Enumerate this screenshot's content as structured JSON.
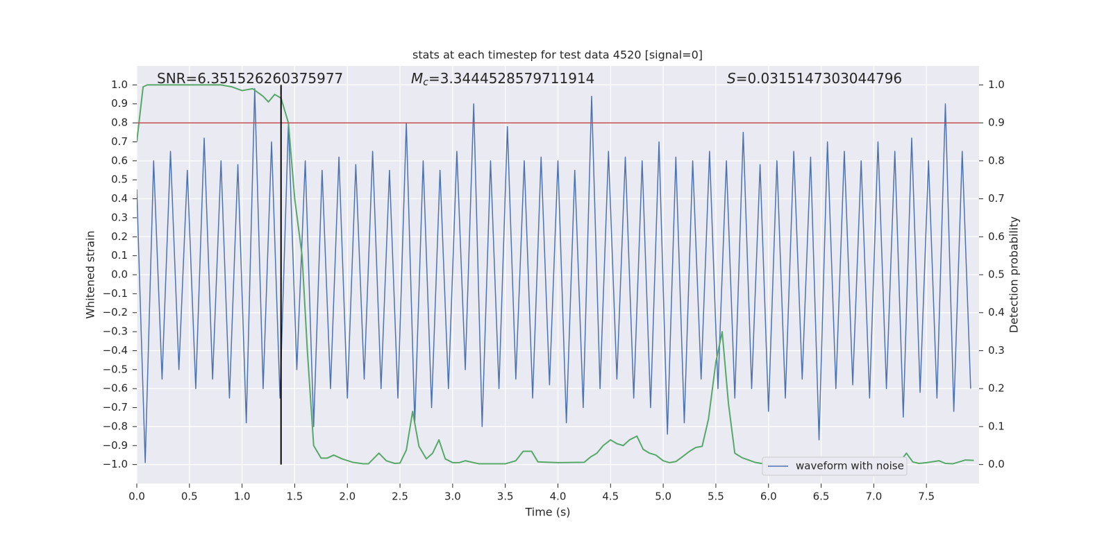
{
  "chart_data": {
    "type": "line",
    "title": "stats at each timestep for test data 4520 [signal=0]",
    "xlabel": "Time (s)",
    "ylabel": "Whitened strain",
    "y2label": "Detection probability",
    "annotations": [
      {
        "text": "SNR=6.351526260375977"
      },
      {
        "symbol": "M",
        "subscript": "c",
        "text": "=3.3444528579711914"
      },
      {
        "symbol": "S",
        "text": "=0.0315147303044796"
      }
    ],
    "xlim": [
      0,
      8
    ],
    "ylim": [
      -1.1,
      1.1
    ],
    "y2lim": [
      -0.05,
      1.05
    ],
    "xticks": [
      {
        "value": 0,
        "label": "0.0"
      },
      0.5,
      {
        "value": 1,
        "label": "1.0"
      },
      1.5,
      {
        "value": 2,
        "label": "2.0"
      },
      2.5,
      {
        "value": 3,
        "label": "3.0"
      },
      3.5,
      {
        "value": 4,
        "label": "4.0"
      },
      4.5,
      {
        "value": 5,
        "label": "5.0"
      },
      5.5,
      {
        "value": 6,
        "label": "6.0"
      },
      6.5,
      {
        "value": 7,
        "label": "7.0"
      },
      7.5
    ],
    "yticks": [
      {
        "value": -1,
        "label": "−1.0"
      },
      {
        "value": -0.9,
        "label": "−0.9"
      },
      {
        "value": -0.8,
        "label": "−0.8"
      },
      {
        "value": -0.7,
        "label": "−0.7"
      },
      {
        "value": -0.6,
        "label": "−0.6"
      },
      {
        "value": -0.5,
        "label": "−0.5"
      },
      {
        "value": -0.4,
        "label": "−0.4"
      },
      {
        "value": -0.3,
        "label": "−0.3"
      },
      {
        "value": -0.2,
        "label": "−0.2"
      },
      {
        "value": -0.1,
        "label": "−0.1"
      },
      {
        "value": 0,
        "label": "0.0"
      },
      0.1,
      0.2,
      0.3,
      0.4,
      0.5,
      0.6,
      0.7,
      0.8,
      0.9,
      {
        "value": 1,
        "label": "1.0"
      }
    ],
    "y2ticks": [
      {
        "value": 0,
        "label": "0.0"
      },
      0.1,
      0.2,
      0.3,
      0.4,
      0.5,
      0.6,
      0.7,
      0.8,
      0.9,
      {
        "value": 1,
        "label": "1.0"
      }
    ],
    "grid": true,
    "legend": "lower right",
    "hline": {
      "value": 0.9,
      "axis": "y2",
      "color": "#c44e52"
    },
    "vline": {
      "value": 1.37,
      "ymin": -1,
      "ymax": 1,
      "color": "#000000"
    },
    "series": [
      {
        "name": "waveform with noise",
        "color": "#4c72b0",
        "x": [
          0,
          0.08,
          0.16,
          0.24,
          0.32,
          0.4,
          0.48,
          0.56,
          0.64,
          0.72,
          0.8,
          0.88,
          0.96,
          1.04,
          1.12,
          1.2,
          1.28,
          1.36,
          1.44,
          1.52,
          1.6,
          1.68,
          1.76,
          1.84,
          1.92,
          2,
          2.08,
          2.16,
          2.24,
          2.32,
          2.4,
          2.48,
          2.56,
          2.64,
          2.72,
          2.8,
          2.88,
          2.96,
          3.04,
          3.12,
          3.2,
          3.28,
          3.36,
          3.44,
          3.52,
          3.6,
          3.68,
          3.76,
          3.84,
          3.92,
          4,
          4.08,
          4.16,
          4.24,
          4.32,
          4.4,
          4.48,
          4.56,
          4.64,
          4.72,
          4.8,
          4.88,
          4.96,
          5.04,
          5.12,
          5.2,
          5.28,
          5.36,
          5.44,
          5.52,
          5.6,
          5.68,
          5.76,
          5.84,
          5.92,
          6,
          6.08,
          6.16,
          6.24,
          6.32,
          6.4,
          6.48,
          6.56,
          6.64,
          6.72,
          6.8,
          6.88,
          6.96,
          7.04,
          7.12,
          7.2,
          7.28,
          7.36,
          7.44,
          7.52,
          7.6,
          7.68,
          7.76,
          7.84,
          7.92
        ],
        "values": [
          0.45,
          -0.99,
          0.6,
          -0.55,
          0.65,
          -0.5,
          0.55,
          -0.6,
          0.72,
          -0.55,
          0.6,
          -0.65,
          0.58,
          -0.78,
          0.98,
          -0.6,
          0.7,
          -0.65,
          0.8,
          -0.5,
          0.6,
          -0.8,
          0.55,
          -0.6,
          0.62,
          -0.65,
          0.58,
          -0.55,
          0.65,
          -0.6,
          0.55,
          -0.65,
          0.8,
          -0.78,
          0.6,
          -0.7,
          0.55,
          -0.6,
          0.65,
          -0.5,
          0.9,
          -0.8,
          0.6,
          -0.6,
          0.78,
          -0.55,
          0.6,
          -0.65,
          0.62,
          -0.58,
          0.6,
          -0.78,
          0.55,
          -0.7,
          0.94,
          -0.6,
          0.65,
          -0.55,
          0.62,
          -0.65,
          0.6,
          -0.7,
          0.7,
          -0.84,
          0.62,
          -0.78,
          0.6,
          -0.55,
          0.65,
          -0.6,
          0.6,
          -0.65,
          0.75,
          -0.6,
          0.58,
          -0.72,
          0.6,
          -0.65,
          0.65,
          -0.55,
          0.62,
          -0.87,
          0.7,
          -0.6,
          0.65,
          -0.58,
          0.6,
          -0.65,
          0.7,
          -0.6,
          0.65,
          -0.75,
          0.72,
          -0.62,
          0.6,
          -0.65,
          0.9,
          -0.72,
          0.65,
          -0.6
        ]
      },
      {
        "color": "#55a868",
        "axis": "y2",
        "x": [
          0,
          0.06,
          0.1,
          0.4,
          0.8,
          0.9,
          1.0,
          1.1,
          1.2,
          1.25,
          1.31,
          1.37,
          1.44,
          1.5,
          1.57,
          1.62,
          1.68,
          1.75,
          1.81,
          1.87,
          1.95,
          2.05,
          2.15,
          2.2,
          2.3,
          2.37,
          2.45,
          2.5,
          2.56,
          2.62,
          2.68,
          2.75,
          2.81,
          2.87,
          2.93,
          3.0,
          3.06,
          3.12,
          3.25,
          3.5,
          3.6,
          3.67,
          3.75,
          3.81,
          4.0,
          4.25,
          4.31,
          4.37,
          4.43,
          4.5,
          4.56,
          4.62,
          4.68,
          4.75,
          4.81,
          4.87,
          4.93,
          5.0,
          5.06,
          5.12,
          5.18,
          5.25,
          5.31,
          5.37,
          5.43,
          5.5,
          5.56,
          5.62,
          5.68,
          5.75,
          5.81,
          5.87,
          5.93,
          6.0,
          6.25,
          6.5,
          6.56,
          6.62,
          6.75,
          6.87,
          7.0,
          7.12,
          7.25,
          7.31,
          7.37,
          7.43,
          7.5,
          7.62,
          7.68,
          7.75,
          7.87,
          7.95
        ],
        "values": [
          0.85,
          0.995,
          1.0,
          1.0,
          1.0,
          0.995,
          0.985,
          0.99,
          0.97,
          0.955,
          0.975,
          0.965,
          0.9,
          0.7,
          0.55,
          0.3,
          0.05,
          0.017,
          0.017,
          0.025,
          0.015,
          0.006,
          0.002,
          0.002,
          0.03,
          0.01,
          0.003,
          0.004,
          0.038,
          0.14,
          0.048,
          0.015,
          0.03,
          0.065,
          0.015,
          0.005,
          0.005,
          0.01,
          0.002,
          0.002,
          0.01,
          0.035,
          0.035,
          0.007,
          0.005,
          0.006,
          0.02,
          0.03,
          0.05,
          0.065,
          0.055,
          0.05,
          0.065,
          0.075,
          0.04,
          0.03,
          0.025,
          0.01,
          0.005,
          0.008,
          0.02,
          0.035,
          0.045,
          0.048,
          0.12,
          0.27,
          0.35,
          0.16,
          0.03,
          0.018,
          0.012,
          0.006,
          0.003,
          0.002,
          0.002,
          0.003,
          0.008,
          0.003,
          0.002,
          0.003,
          0.003,
          0.01,
          0.008,
          0.03,
          0.007,
          0.003,
          0.005,
          0.01,
          0.003,
          0.002,
          0.012,
          0.011
        ]
      }
    ]
  }
}
